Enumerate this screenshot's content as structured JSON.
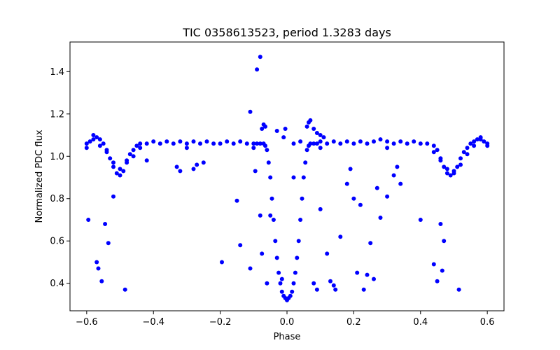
{
  "chart_data": {
    "type": "scatter",
    "title": "TIC 0358613523, period 1.3283 days",
    "xlabel": "Phase",
    "ylabel": "Normalized PDC flux",
    "xlim": [
      -0.65,
      0.65
    ],
    "ylim": [
      0.27,
      1.54
    ],
    "xticks": [
      -0.6,
      -0.4,
      -0.2,
      0.0,
      0.2,
      0.4,
      0.6
    ],
    "xtick_labels": [
      "−0.6",
      "−0.4",
      "−0.2",
      "0.0",
      "0.2",
      "0.4",
      "0.6"
    ],
    "yticks": [
      0.4,
      0.6,
      0.8,
      1.0,
      1.2,
      1.4
    ],
    "ytick_labels": [
      "0.4",
      "0.6",
      "0.8",
      "1.0",
      "1.2",
      "1.4"
    ],
    "grid": false,
    "legend": "none",
    "marker_color": "#0000ff",
    "series": [
      {
        "x": [
          -0.6,
          -0.59,
          -0.58,
          -0.57,
          -0.56,
          -0.55,
          -0.54,
          -0.53,
          -0.52,
          -0.51,
          -0.5,
          -0.49,
          -0.48,
          -0.47,
          -0.46,
          -0.45,
          -0.44,
          -0.42,
          -0.4,
          -0.38,
          -0.36,
          -0.34,
          -0.32,
          -0.3,
          -0.28,
          -0.26,
          -0.24,
          -0.22,
          -0.2,
          -0.18,
          -0.16,
          -0.14,
          -0.12,
          -0.1,
          -0.09,
          -0.08,
          -0.07,
          -0.065,
          -0.06,
          -0.055,
          -0.05,
          -0.045,
          -0.04,
          -0.035,
          -0.03,
          -0.025,
          -0.02,
          -0.015,
          -0.01,
          -0.005,
          0.0,
          0.005,
          0.01,
          0.015,
          0.02,
          0.025,
          0.03,
          0.035,
          0.04,
          0.045,
          0.05,
          0.055,
          0.06,
          0.065,
          0.07,
          0.08,
          0.09,
          0.1,
          0.12,
          0.14,
          0.16,
          0.18,
          0.2,
          0.22,
          0.24,
          0.26,
          0.28,
          0.3,
          0.32,
          0.34,
          0.36,
          0.38,
          0.4,
          0.42,
          0.44,
          0.45,
          0.46,
          0.47,
          0.48,
          0.49,
          0.5,
          0.51,
          0.52,
          0.53,
          0.54,
          0.55,
          0.56,
          0.57,
          0.58,
          0.59,
          0.6,
          -0.6,
          -0.58,
          -0.56,
          -0.54,
          -0.52,
          -0.5,
          -0.48,
          -0.46,
          -0.44,
          -0.3,
          -0.1,
          0.1,
          0.3,
          0.44,
          0.46,
          0.48,
          0.5,
          0.52,
          0.54,
          0.56,
          0.58,
          0.6,
          -0.595,
          -0.57,
          -0.565,
          -0.555,
          -0.545,
          -0.535,
          -0.52,
          -0.485,
          -0.42,
          -0.33,
          -0.32,
          -0.28,
          -0.27,
          -0.25,
          -0.195,
          -0.15,
          -0.14,
          -0.11,
          -0.095,
          -0.08,
          -0.075,
          -0.06,
          -0.05,
          -0.015,
          -0.005,
          0.02,
          0.08,
          0.09,
          0.1,
          0.12,
          0.13,
          0.14,
          0.145,
          0.16,
          0.18,
          0.19,
          0.2,
          0.21,
          0.22,
          0.23,
          0.24,
          0.25,
          0.26,
          0.27,
          0.28,
          0.3,
          0.32,
          0.33,
          0.34,
          0.4,
          0.44,
          0.45,
          0.46,
          0.465,
          0.47,
          0.515,
          -0.11,
          -0.09,
          -0.08,
          -0.075,
          -0.07,
          -0.065,
          -0.03,
          -0.01,
          0.02,
          0.04,
          0.06,
          0.065,
          0.07,
          0.08,
          0.09,
          0.1,
          0.11
        ],
        "y": [
          1.06,
          1.07,
          1.08,
          1.09,
          1.08,
          1.06,
          1.03,
          0.99,
          0.95,
          0.92,
          0.91,
          0.93,
          0.97,
          1.01,
          1.03,
          1.05,
          1.06,
          1.06,
          1.07,
          1.06,
          1.07,
          1.06,
          1.07,
          1.06,
          1.07,
          1.06,
          1.07,
          1.06,
          1.06,
          1.07,
          1.06,
          1.07,
          1.06,
          1.06,
          1.06,
          1.06,
          1.06,
          1.05,
          1.03,
          0.97,
          0.9,
          0.8,
          0.7,
          0.6,
          0.52,
          0.45,
          0.4,
          0.36,
          0.34,
          0.33,
          0.32,
          0.33,
          0.34,
          0.36,
          0.4,
          0.45,
          0.52,
          0.6,
          0.7,
          0.8,
          0.9,
          0.97,
          1.03,
          1.05,
          1.06,
          1.06,
          1.06,
          1.07,
          1.06,
          1.07,
          1.06,
          1.07,
          1.06,
          1.07,
          1.06,
          1.07,
          1.08,
          1.07,
          1.06,
          1.07,
          1.06,
          1.07,
          1.06,
          1.06,
          1.05,
          1.03,
          0.99,
          0.95,
          0.92,
          0.91,
          0.92,
          0.95,
          0.99,
          1.02,
          1.04,
          1.06,
          1.07,
          1.08,
          1.09,
          1.07,
          1.06,
          1.04,
          1.1,
          1.05,
          1.02,
          0.97,
          0.94,
          0.98,
          1.0,
          1.04,
          1.04,
          1.04,
          1.04,
          1.04,
          1.02,
          0.98,
          0.94,
          0.93,
          0.96,
          1.01,
          1.05,
          1.08,
          1.05,
          0.7,
          0.5,
          0.47,
          0.41,
          0.68,
          0.59,
          0.81,
          0.37,
          0.98,
          0.95,
          0.93,
          0.94,
          0.96,
          0.97,
          0.5,
          0.79,
          0.58,
          0.47,
          0.93,
          0.72,
          0.54,
          0.4,
          0.72,
          0.42,
          1.13,
          0.9,
          0.4,
          0.37,
          0.75,
          0.54,
          0.41,
          0.39,
          0.37,
          0.62,
          0.87,
          0.94,
          0.8,
          0.45,
          0.77,
          0.37,
          0.44,
          0.59,
          0.42,
          0.85,
          0.71,
          0.81,
          0.91,
          0.95,
          0.87,
          0.7,
          0.49,
          0.41,
          0.68,
          0.46,
          0.6,
          0.37,
          1.21,
          1.41,
          1.47,
          1.13,
          1.15,
          1.14,
          1.12,
          1.09,
          1.06,
          1.07,
          1.14,
          1.16,
          1.17,
          1.13,
          1.11,
          1.1,
          1.09
        ]
      }
    ]
  }
}
